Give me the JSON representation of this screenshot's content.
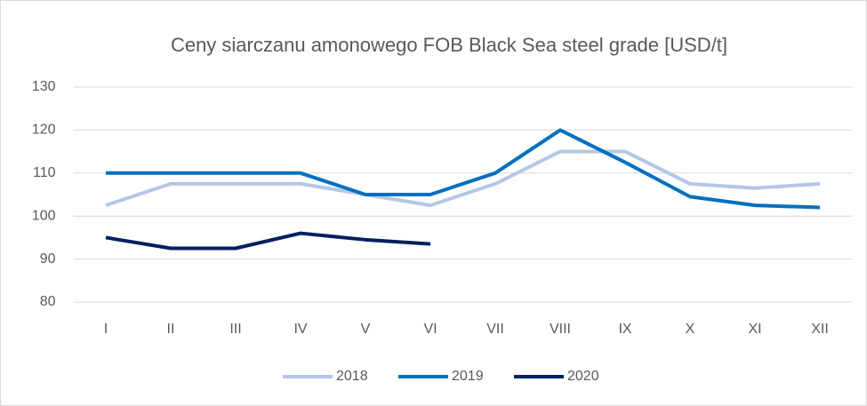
{
  "chart_data": {
    "type": "line",
    "title": "Ceny siarczanu amonowego FOB Black Sea steel grade [USD/t]",
    "categories": [
      "I",
      "II",
      "III",
      "IV",
      "V",
      "VI",
      "VII",
      "VIII",
      "IX",
      "X",
      "XI",
      "XII"
    ],
    "series": [
      {
        "name": "2018",
        "color": "#b4c7e7",
        "values": [
          102.5,
          107.5,
          107.5,
          107.5,
          105,
          102.5,
          107.5,
          115,
          115,
          107.5,
          106.5,
          107.5
        ]
      },
      {
        "name": "2019",
        "color": "#0070c0",
        "values": [
          110,
          110,
          110,
          110,
          105,
          105,
          110,
          120,
          112.5,
          104.5,
          102.5,
          102
        ]
      },
      {
        "name": "2020",
        "color": "#002060",
        "values": [
          95,
          92.5,
          92.5,
          96,
          94.5,
          93.5,
          null,
          null,
          null,
          null,
          null,
          null
        ]
      }
    ],
    "ylim": [
      80,
      130
    ],
    "yticks": [
      80,
      90,
      100,
      110,
      120,
      130
    ],
    "grid": true,
    "legend": "bottom"
  }
}
